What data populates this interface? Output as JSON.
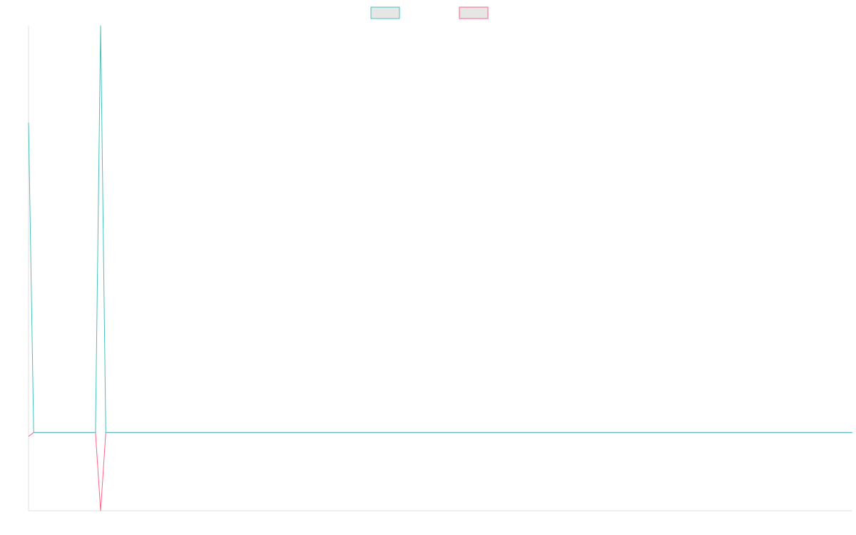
{
  "chart_data": {
    "type": "line",
    "title": "",
    "xlabel": "",
    "ylabel": "",
    "legend_position": "top-center",
    "grid": false,
    "x": [
      0,
      1,
      2,
      3,
      4,
      5,
      6,
      7,
      8,
      9,
      10,
      11,
      12,
      13,
      14,
      15,
      16,
      17,
      18,
      19,
      20,
      21,
      22,
      23,
      24,
      25,
      26,
      27,
      28,
      29,
      30,
      31,
      32,
      33,
      34,
      35,
      36,
      37,
      38,
      39,
      40,
      41,
      42,
      43,
      44,
      45,
      46,
      47,
      48,
      49,
      50,
      51,
      52,
      53,
      54,
      55,
      56,
      57,
      58,
      59,
      60,
      61,
      62,
      63,
      64,
      65,
      66,
      67,
      68,
      69,
      70,
      71,
      72,
      73,
      74,
      75,
      76,
      77,
      78,
      79,
      80,
      81,
      82,
      83,
      84,
      85,
      86,
      87,
      88,
      89,
      90,
      91,
      92,
      93,
      94,
      95,
      96,
      97,
      98,
      99,
      100,
      101,
      102,
      103,
      104,
      105,
      106,
      107,
      108,
      109,
      110,
      111,
      112,
      113,
      114,
      115,
      116,
      117,
      118,
      119,
      120,
      121,
      122,
      123,
      124,
      125,
      126,
      127,
      128,
      129,
      130,
      131,
      132,
      133,
      134,
      135,
      136,
      137,
      138,
      139,
      140,
      141,
      142,
      143,
      144,
      145,
      146,
      147,
      148,
      149,
      150,
      151,
      152,
      153,
      154,
      155,
      156,
      157,
      158,
      159,
      160
    ],
    "xlim": [
      0,
      160
    ],
    "ylim": [
      -1,
      5.2
    ],
    "series": [
      {
        "name": "",
        "color": "#4bc0c0",
        "values": [
          3.96,
          0,
          0,
          0,
          0,
          0,
          0,
          0,
          0,
          0,
          0,
          0,
          0,
          0,
          5.2,
          0,
          0,
          0,
          0,
          0,
          0,
          0,
          0,
          0,
          0,
          0,
          0,
          0,
          0,
          0,
          0,
          0,
          0,
          0,
          0,
          0,
          0,
          0,
          0,
          0,
          0,
          0,
          0,
          0,
          0,
          0,
          0,
          0,
          0,
          0,
          0,
          0,
          0,
          0,
          0,
          0,
          0,
          0,
          0,
          0,
          0,
          0,
          0,
          0,
          0,
          0,
          0,
          0,
          0,
          0,
          0,
          0,
          0,
          0,
          0,
          0,
          0,
          0,
          0,
          0,
          0,
          0,
          0,
          0,
          0,
          0,
          0,
          0,
          0,
          0,
          0,
          0,
          0,
          0,
          0,
          0,
          0,
          0,
          0,
          0,
          0,
          0,
          0,
          0,
          0,
          0,
          0,
          0,
          0,
          0,
          0,
          0,
          0,
          0,
          0,
          0,
          0,
          0,
          0,
          0,
          0,
          0,
          0,
          0,
          0,
          0,
          0,
          0,
          0,
          0,
          0,
          0,
          0,
          0,
          0,
          0,
          0,
          0,
          0,
          0,
          0,
          0,
          0,
          0,
          0,
          0,
          0,
          0,
          0,
          0,
          0,
          0,
          0,
          0,
          0,
          0,
          0,
          0,
          0,
          0,
          0
        ]
      },
      {
        "name": "",
        "color": "#ff6384",
        "values": [
          -0.05,
          0,
          0,
          0,
          0,
          0,
          0,
          0,
          0,
          0,
          0,
          0,
          0,
          0,
          -1,
          0,
          0,
          0,
          0,
          0,
          0,
          0,
          0,
          0,
          0,
          0,
          0,
          0,
          0,
          0,
          0,
          0,
          0,
          0,
          0,
          0,
          0,
          0,
          0,
          0,
          0,
          0,
          0,
          0,
          0,
          0,
          0,
          0,
          0,
          0,
          0,
          0,
          0,
          0,
          0,
          0,
          0,
          0,
          0,
          0,
          0,
          0,
          0,
          0,
          0,
          0,
          0,
          0,
          0,
          0,
          0,
          0,
          0,
          0,
          0,
          0,
          0,
          0,
          0,
          0,
          0,
          0,
          0,
          0,
          0,
          0,
          0,
          0,
          0,
          0,
          0,
          0,
          0,
          0,
          0,
          0,
          0,
          0,
          0,
          0,
          0,
          0,
          0,
          0,
          0,
          0,
          0,
          0,
          0,
          0,
          0,
          0,
          0,
          0,
          0,
          0,
          0,
          0,
          0,
          0,
          0,
          0,
          0,
          0,
          0,
          0,
          0,
          0,
          0,
          0,
          0,
          0,
          0,
          0,
          0,
          0,
          0,
          0,
          0,
          0,
          0,
          0,
          0,
          0,
          0,
          0,
          0,
          0,
          0,
          0,
          0,
          0,
          0,
          0,
          0,
          0,
          0,
          0,
          0,
          0,
          0
        ]
      }
    ]
  },
  "colors": {
    "legend_fill": "#e6e6e6",
    "axis": "#e0e0e0"
  }
}
